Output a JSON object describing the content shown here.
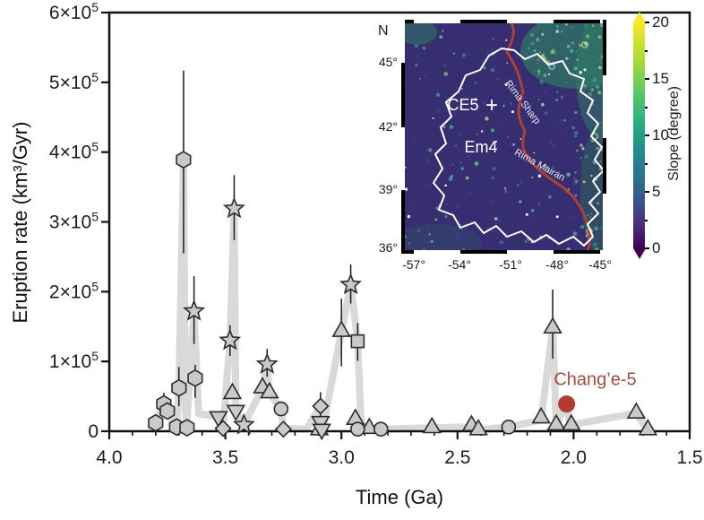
{
  "chart_data": {
    "type": "scatter",
    "title": "",
    "xlabel": "Time (Ga)",
    "ylabel": "Eruption rate (km³/Gyr)",
    "xlim": [
      4.0,
      1.5
    ],
    "ylim": [
      0,
      600000
    ],
    "x_ticks": [
      4.0,
      3.5,
      3.0,
      2.5,
      2.0,
      1.5
    ],
    "x_tick_labels": [
      "4.0",
      "3.5",
      "3.0",
      "2.5",
      "2.0",
      "1.5"
    ],
    "x_minor_step": 0.1,
    "y_ticks": [
      0,
      100000,
      200000,
      300000,
      400000,
      500000,
      600000
    ],
    "y_tick_exponent": "5",
    "axis_color": "#111111",
    "marker_fill": "#c9c9c9",
    "marker_stroke": "#2b2b2b",
    "band_color": "#d5d5d5",
    "band": [
      [
        3.82,
        5000
      ],
      [
        3.8,
        12000
      ],
      [
        3.765,
        39000
      ],
      [
        3.75,
        29000
      ],
      [
        3.71,
        6000
      ],
      [
        3.7,
        62000
      ],
      [
        3.68,
        389000
      ],
      [
        3.672,
        30000
      ],
      [
        3.667,
        5000
      ],
      [
        3.635,
        172000
      ],
      [
        3.615,
        25000
      ],
      [
        3.53,
        21000
      ],
      [
        3.51,
        5000
      ],
      [
        3.48,
        130000
      ],
      [
        3.462,
        319000
      ],
      [
        3.455,
        30000
      ],
      [
        3.42,
        9000
      ],
      [
        3.34,
        62000
      ],
      [
        3.32,
        96000
      ],
      [
        3.31,
        55000
      ],
      [
        3.26,
        32000
      ],
      [
        3.25,
        4000
      ],
      [
        3.15,
        3000
      ],
      [
        3.09,
        36000
      ],
      [
        3.08,
        4000
      ],
      [
        3.0,
        143000
      ],
      [
        2.96,
        210000
      ],
      [
        2.93,
        129000
      ],
      [
        2.915,
        10000
      ],
      [
        2.88,
        4000
      ],
      [
        2.83,
        3000
      ],
      [
        2.61,
        5000
      ],
      [
        2.44,
        6000
      ],
      [
        2.41,
        2000
      ],
      [
        2.28,
        6000
      ],
      [
        2.14,
        16000
      ],
      [
        2.09,
        148000
      ],
      [
        2.075,
        9000
      ],
      [
        2.03,
        39000
      ],
      [
        2.015,
        9000
      ],
      [
        1.73,
        26000
      ],
      [
        1.685,
        3000
      ]
    ],
    "series": [
      {
        "name": "hexagon",
        "marker": "hexagon",
        "points": [
          {
            "t": 3.8,
            "v": 12000
          },
          {
            "t": 3.765,
            "v": 39000,
            "err": [
              25000,
              55000
            ]
          },
          {
            "t": 3.75,
            "v": 29000
          },
          {
            "t": 3.71,
            "v": 6000
          },
          {
            "t": 3.7,
            "v": 62000,
            "err": [
              36000,
              92000
            ]
          },
          {
            "t": 3.68,
            "v": 389000,
            "err": [
              255000,
              517000
            ]
          },
          {
            "t": 3.665,
            "v": 5000
          },
          {
            "t": 3.63,
            "v": 76000,
            "err": [
              48000,
              95000
            ]
          }
        ]
      },
      {
        "name": "star",
        "marker": "star",
        "points": [
          {
            "t": 3.635,
            "v": 172000,
            "err": [
              125000,
              222000
            ]
          },
          {
            "t": 3.48,
            "v": 130000,
            "err": [
              108000,
              152000
            ]
          },
          {
            "t": 3.462,
            "v": 319000,
            "err": [
              274000,
              367000
            ]
          },
          {
            "t": 3.42,
            "v": 9000
          },
          {
            "t": 3.32,
            "v": 96000,
            "err": [
              78000,
              118000
            ]
          },
          {
            "t": 2.96,
            "v": 210000,
            "err": [
              183000,
              239000
            ]
          }
        ]
      },
      {
        "name": "triangle-up",
        "marker": "triangle-up",
        "points": [
          {
            "t": 3.47,
            "v": 54000
          },
          {
            "t": 3.34,
            "v": 62000
          },
          {
            "t": 3.31,
            "v": 55000
          },
          {
            "t": 3.095,
            "v": 2000
          },
          {
            "t": 3.0,
            "v": 143000,
            "err": [
              93000,
              190000
            ]
          },
          {
            "t": 2.94,
            "v": 17000
          },
          {
            "t": 2.88,
            "v": 4000
          },
          {
            "t": 2.61,
            "v": 5000
          },
          {
            "t": 2.44,
            "v": 8000
          },
          {
            "t": 2.41,
            "v": 2000
          },
          {
            "t": 2.14,
            "v": 19000
          },
          {
            "t": 2.09,
            "v": 148000,
            "err": [
              104000,
              203000
            ]
          },
          {
            "t": 2.075,
            "v": 9000
          },
          {
            "t": 2.01,
            "v": 9000
          },
          {
            "t": 1.73,
            "v": 26000
          },
          {
            "t": 1.68,
            "v": 2000
          }
        ]
      },
      {
        "name": "triangle-down",
        "marker": "triangle-down",
        "points": [
          {
            "t": 3.53,
            "v": 21000
          },
          {
            "t": 3.455,
            "v": 30000
          },
          {
            "t": 3.09,
            "v": 14000
          },
          {
            "t": 3.085,
            "v": 3000
          }
        ]
      },
      {
        "name": "diamond",
        "marker": "diamond",
        "points": [
          {
            "t": 3.51,
            "v": 4000
          },
          {
            "t": 3.25,
            "v": 3000
          },
          {
            "t": 3.09,
            "v": 36000,
            "err": [
              18000,
              56000
            ]
          }
        ]
      },
      {
        "name": "square",
        "marker": "square",
        "points": [
          {
            "t": 2.93,
            "v": 129000,
            "err": [
              101000,
              155000
            ]
          }
        ]
      },
      {
        "name": "circle",
        "marker": "circle",
        "points": [
          {
            "t": 3.26,
            "v": 32000
          },
          {
            "t": 2.93,
            "v": 3000
          },
          {
            "t": 2.83,
            "v": 3000
          },
          {
            "t": 2.28,
            "v": 6000
          }
        ]
      },
      {
        "name": "change5",
        "marker": "circle",
        "color": "#b23a32",
        "size": 9.5,
        "points": [
          {
            "t": 2.03,
            "v": 39000
          }
        ]
      }
    ],
    "annotation": {
      "text": "Chang’e-5",
      "t": 2.085,
      "v": 66000,
      "color": "#a8493f"
    }
  },
  "inset": {
    "north": "N",
    "lat_ticks": [
      "45°",
      "42°",
      "39°",
      "36°"
    ],
    "lon_ticks": [
      "-57°",
      "-54°",
      "-51°",
      "-48°",
      "-45°"
    ],
    "site_label": "CE5",
    "site_marker": "+",
    "unit_label": "Em4",
    "rille_labels": [
      "Rima Sharp",
      "Rima Mairan"
    ],
    "colorbar": {
      "label": "Slope (degree)",
      "ticks": [
        20,
        15,
        10,
        5,
        0
      ],
      "top_color": "#fde725",
      "bottom_color": "#440154"
    }
  }
}
